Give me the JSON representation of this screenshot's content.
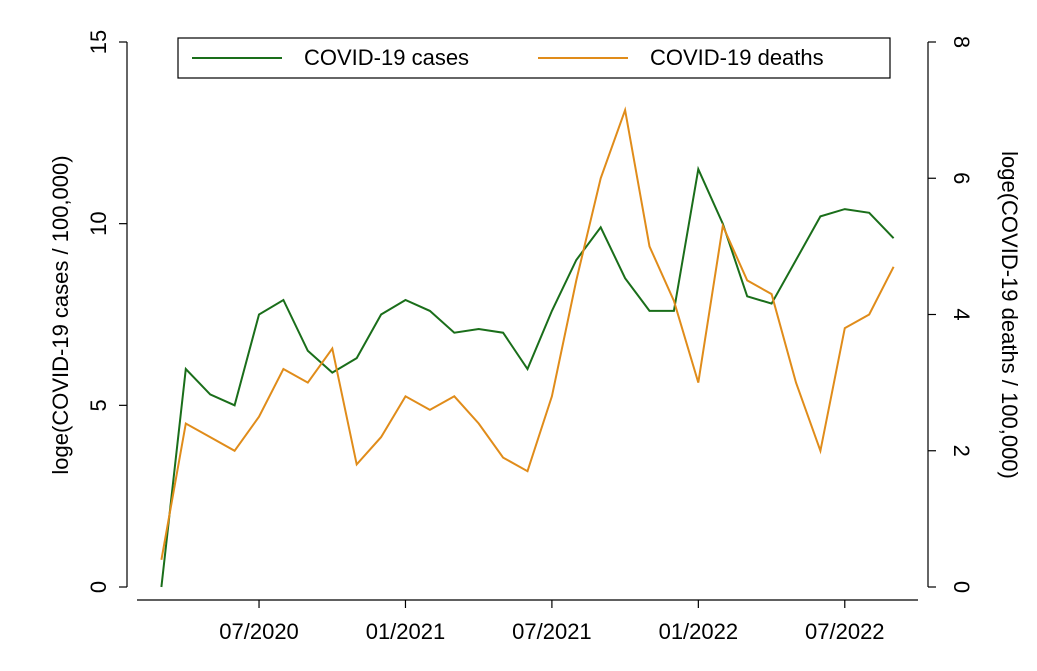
{
  "chart_data": {
    "type": "line",
    "y_label": "loge(COVID-19 cases / 100,000)",
    "y2_label": "loge(COVID-19 deaths / 100,000)",
    "x": [
      "2020-03",
      "2020-04",
      "2020-05",
      "2020-06",
      "2020-07",
      "2020-08",
      "2020-09",
      "2020-10",
      "2020-11",
      "2020-12",
      "2021-01",
      "2021-02",
      "2021-03",
      "2021-04",
      "2021-05",
      "2021-06",
      "2021-07",
      "2021-08",
      "2021-09",
      "2021-10",
      "2021-11",
      "2021-12",
      "2022-01",
      "2022-02",
      "2022-03",
      "2022-04",
      "2022-05",
      "2022-06",
      "2022-07",
      "2022-08",
      "2022-09"
    ],
    "series": [
      {
        "name": "COVID-19 cases",
        "color": "#1a6e1a",
        "axis": "y",
        "values": [
          0,
          6.0,
          5.3,
          5.0,
          7.5,
          7.9,
          6.5,
          5.9,
          6.3,
          7.5,
          7.9,
          7.6,
          7.0,
          7.1,
          7.0,
          6.0,
          7.6,
          9.0,
          9.9,
          8.5,
          7.6,
          7.6,
          11.5,
          10.0,
          8.0,
          7.8,
          9.0,
          10.2,
          10.4,
          10.3,
          9.6
        ]
      },
      {
        "name": "COVID-19 deaths",
        "color": "#e08c1a",
        "axis": "y2",
        "values": [
          0.4,
          2.4,
          2.2,
          2.0,
          2.5,
          3.2,
          3.0,
          3.5,
          1.8,
          2.2,
          2.8,
          2.6,
          2.8,
          2.4,
          1.9,
          1.7,
          2.8,
          4.5,
          6.0,
          7.0,
          5.0,
          4.2,
          3.0,
          5.3,
          4.5,
          4.3,
          3.0,
          2.0,
          3.8,
          4.0,
          4.7
        ]
      }
    ],
    "xlim": [
      "2020-02",
      "2022-10"
    ],
    "xticks": [
      {
        "value": "2020-07",
        "label": "07/2020"
      },
      {
        "value": "2021-01",
        "label": "01/2021"
      },
      {
        "value": "2021-07",
        "label": "07/2021"
      },
      {
        "value": "2022-01",
        "label": "01/2022"
      },
      {
        "value": "2022-07",
        "label": "07/2022"
      }
    ],
    "ylim": [
      0,
      15
    ],
    "yticks": [
      0,
      5,
      10,
      15
    ],
    "y2lim": [
      0,
      8
    ],
    "y2ticks": [
      0,
      2,
      4,
      6,
      8
    ],
    "legend": "top"
  }
}
